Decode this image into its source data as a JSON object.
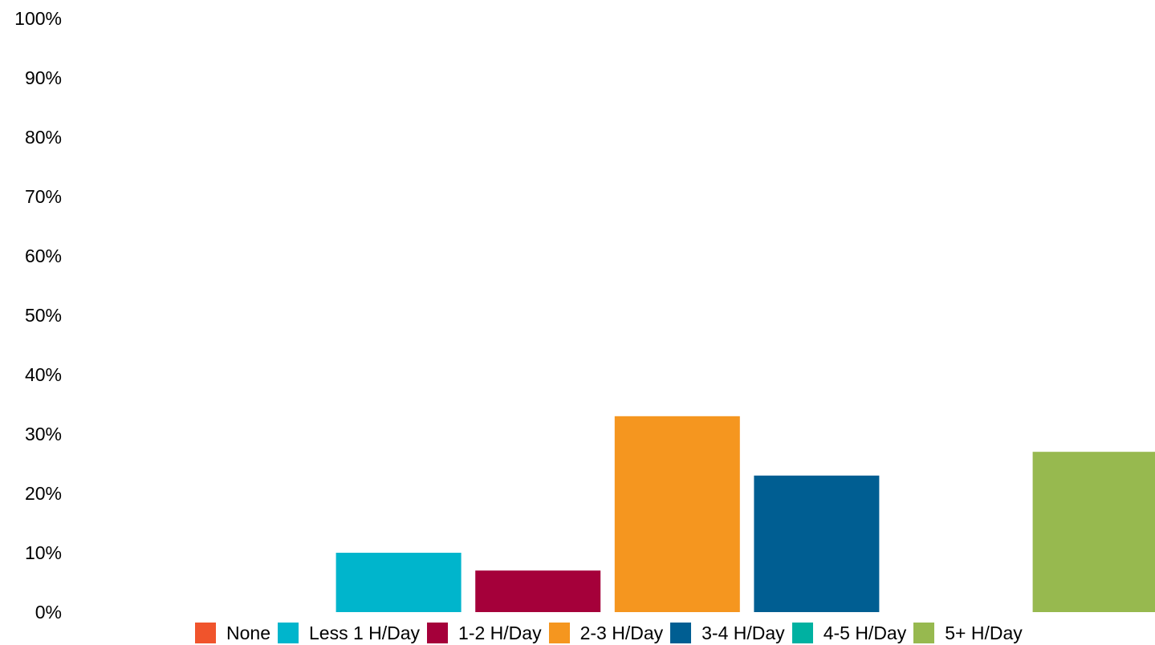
{
  "chart_data": {
    "type": "bar",
    "categories": [
      "None",
      "Less 1 H/Day",
      "1-2 H/Day",
      "2-3 H/Day",
      "3-4 H/Day",
      "4-5 H/Day",
      "5+ H/Day"
    ],
    "values": [
      0,
      10,
      7,
      33,
      23,
      0,
      27
    ],
    "colors": [
      "#F0542C",
      "#00B5CC",
      "#A5003A",
      "#F5961F",
      "#005E92",
      "#00B1A1",
      "#97B94F"
    ],
    "yticks": [
      "0%",
      "10%",
      "20%",
      "30%",
      "40%",
      "50%",
      "60%",
      "70%",
      "80%",
      "90%",
      "100%"
    ],
    "ylim": [
      0,
      100
    ],
    "grid": false,
    "legend_position": "bottom"
  }
}
